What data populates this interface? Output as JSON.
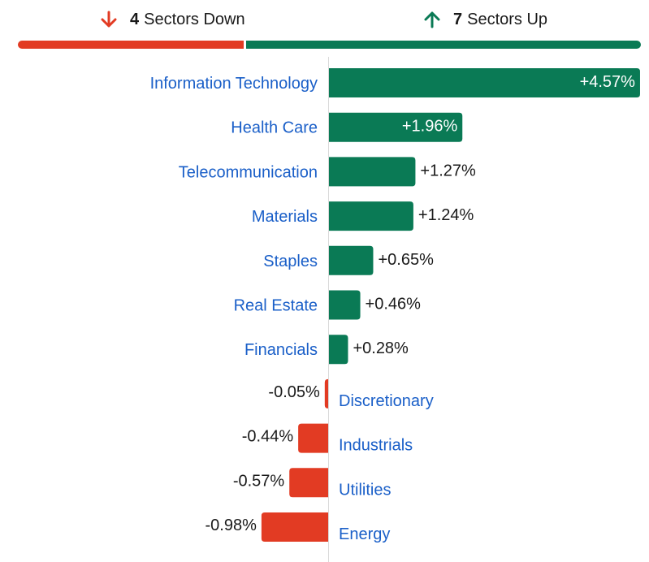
{
  "summary": {
    "down_count": "4",
    "down_text": "Sectors Down",
    "up_count": "7",
    "up_text": "Sectors Up",
    "down_icon": "arrow-down-icon",
    "up_icon": "arrow-up-icon"
  },
  "colors": {
    "up": "#0a7a55",
    "down": "#e23b23",
    "label": "#1a5fc8",
    "text": "#1a1a1a",
    "value_inside": "#ffffff",
    "axis": "#d9d9d9"
  },
  "chart_data": {
    "type": "bar",
    "orientation": "horizontal",
    "categories": [
      "Information Technology",
      "Health Care",
      "Telecommunication",
      "Materials",
      "Staples",
      "Real Estate",
      "Financials",
      "Discretionary",
      "Industrials",
      "Utilities",
      "Energy"
    ],
    "values": [
      4.57,
      1.96,
      1.27,
      1.24,
      0.65,
      0.46,
      0.28,
      -0.05,
      -0.44,
      -0.57,
      -0.98
    ],
    "value_labels": [
      "+4.57%",
      "+1.96%",
      "+1.27%",
      "+1.24%",
      "+0.65%",
      "+0.46%",
      "+0.28%",
      "-0.05%",
      "-0.44%",
      "-0.57%",
      "-0.98%"
    ],
    "up_count": 7,
    "down_count": 4
  }
}
